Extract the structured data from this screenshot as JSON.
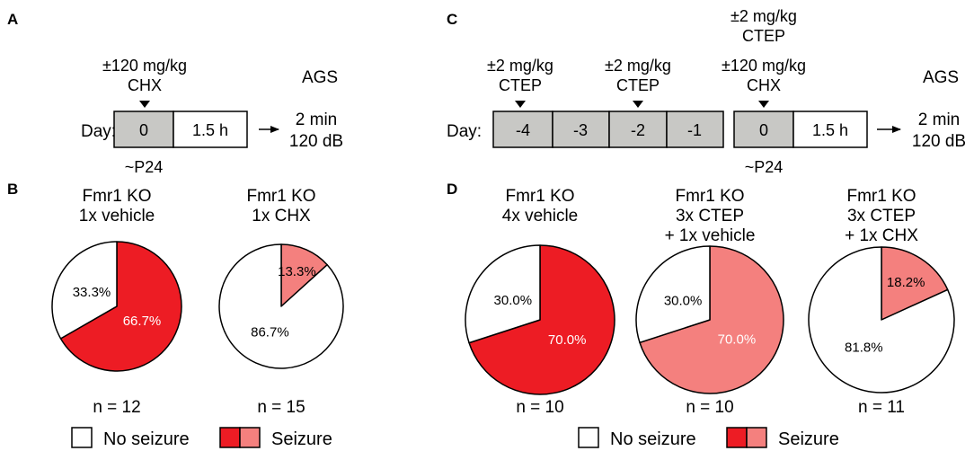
{
  "panels": {
    "A": {
      "letter": "A",
      "dose_line1": "±120 mg/kg",
      "dose_line2": "CHX",
      "day_label": "Day:",
      "boxes": [
        "0",
        "1.5 h"
      ],
      "test_label": "AGS",
      "test_line1": "2 min",
      "test_line2": "120 dB",
      "age_label": "~P24"
    },
    "C": {
      "letter": "C",
      "day_label": "Day:",
      "annotations": [
        {
          "line1": "±2 mg/kg",
          "line2": "CTEP"
        },
        {
          "line1": "±2 mg/kg",
          "line2": "CTEP"
        },
        {
          "line1": "±2 mg/kg",
          "line2": "CTEP"
        },
        {
          "line1": "±120 mg/kg",
          "line2": "CHX"
        }
      ],
      "boxes_left": [
        "-4",
        "-3",
        "-2",
        "-1"
      ],
      "boxes_right": [
        "0",
        "1.5 h"
      ],
      "test_label": "AGS",
      "test_line1": "2 min",
      "test_line2": "120 dB",
      "age_label": "~P24"
    },
    "B": {
      "letter": "B"
    },
    "D": {
      "letter": "D"
    }
  },
  "legend": {
    "no_seizure": "No seizure",
    "seizure": "Seizure"
  },
  "colors": {
    "seizure_dark": "#ed1c24",
    "seizure_light": "#f4807e",
    "no_seizure": "#ffffff",
    "box_gray": "#c8c8c5",
    "outline": "#000000"
  },
  "chart_data": [
    {
      "type": "pie",
      "title_lines": [
        "Fmr1 KO",
        "1x vehicle"
      ],
      "labels": [
        "No seizure",
        "Seizure"
      ],
      "values": [
        33.3,
        66.7
      ],
      "value_labels": [
        "33.3%",
        "66.7%"
      ],
      "seizure_shade": "dark",
      "n_label": "n = 12"
    },
    {
      "type": "pie",
      "title_lines": [
        "Fmr1 KO",
        "1x CHX"
      ],
      "labels": [
        "No seizure",
        "Seizure"
      ],
      "values": [
        86.7,
        13.3
      ],
      "value_labels": [
        "86.7%",
        "13.3%"
      ],
      "seizure_shade": "light",
      "n_label": "n = 15"
    },
    {
      "type": "pie",
      "title_lines": [
        "Fmr1 KO",
        "4x vehicle"
      ],
      "labels": [
        "No seizure",
        "Seizure"
      ],
      "values": [
        30.0,
        70.0
      ],
      "value_labels": [
        "30.0%",
        "70.0%"
      ],
      "seizure_shade": "dark",
      "n_label": "n = 10"
    },
    {
      "type": "pie",
      "title_lines": [
        "Fmr1 KO",
        "3x CTEP",
        "+ 1x vehicle"
      ],
      "labels": [
        "No seizure",
        "Seizure"
      ],
      "values": [
        30.0,
        70.0
      ],
      "value_labels": [
        "30.0%",
        "70.0%"
      ],
      "seizure_shade": "light",
      "n_label": "n = 10"
    },
    {
      "type": "pie",
      "title_lines": [
        "Fmr1 KO",
        "3x CTEP",
        "+ 1x CHX"
      ],
      "labels": [
        "No seizure",
        "Seizure"
      ],
      "values": [
        81.8,
        18.2
      ],
      "value_labels": [
        "81.8%",
        "18.2%"
      ],
      "seizure_shade": "light",
      "n_label": "n = 11"
    }
  ]
}
